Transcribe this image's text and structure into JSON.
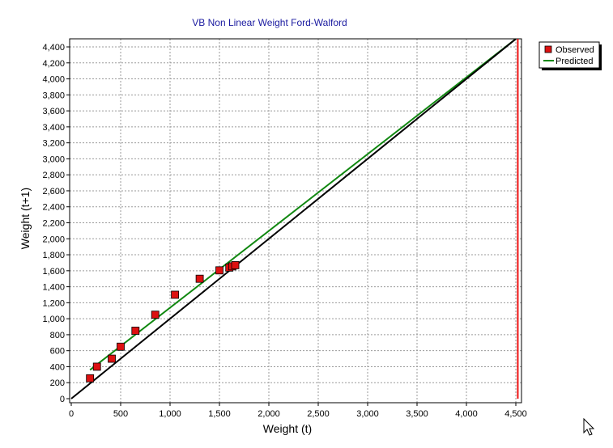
{
  "chart_data": {
    "type": "scatter",
    "title": "VB Non Linear Weight Ford-Walford",
    "xlabel": "Weight (t)",
    "ylabel": "Weight (t+1)",
    "xlim": [
      0,
      4500
    ],
    "ylim": [
      0,
      4500
    ],
    "x_ticks": [
      0,
      500,
      1000,
      1500,
      2000,
      2500,
      3000,
      3500,
      4000,
      4500
    ],
    "x_tick_labels": [
      "0",
      "500",
      "1,000",
      "1,500",
      "2,000",
      "2,500",
      "3,000",
      "3,500",
      "4,000",
      "4,500"
    ],
    "y_ticks": [
      0,
      200,
      400,
      600,
      800,
      1000,
      1200,
      1400,
      1600,
      1800,
      2000,
      2200,
      2400,
      2600,
      2800,
      3000,
      3200,
      3400,
      3600,
      3800,
      4000,
      4200,
      4400
    ],
    "y_tick_labels": [
      "0",
      "200",
      "400",
      "600",
      "800",
      "1,000",
      "1,200",
      "1,400",
      "1,600",
      "1,800",
      "2,000",
      "2,200",
      "2,400",
      "2,600",
      "2,800",
      "3,000",
      "3,200",
      "3,400",
      "3,600",
      "3,800",
      "4,000",
      "4,200",
      "4,400"
    ],
    "grid": true,
    "legend_position": "top-right, outside plot",
    "series": [
      {
        "name": "Observed",
        "kind": "points",
        "color": "#dd1111",
        "x": [
          190,
          260,
          410,
          500,
          650,
          850,
          1050,
          1300,
          1500,
          1600,
          1630,
          1660
        ],
        "y": [
          255,
          400,
          500,
          650,
          850,
          1050,
          1300,
          1500,
          1605,
          1640,
          1655,
          1670
        ]
      },
      {
        "name": "Predicted",
        "kind": "line",
        "color": "#118811",
        "x": [
          190,
          4500
        ],
        "y": [
          360,
          4500
        ]
      },
      {
        "kind": "line",
        "color": "#000000",
        "x": [
          0,
          4500
        ],
        "y": [
          0,
          4500
        ]
      },
      {
        "kind": "vertical-line",
        "color": "#ee1111",
        "x": [
          4520,
          4520
        ],
        "y": [
          0,
          4500
        ]
      }
    ]
  }
}
